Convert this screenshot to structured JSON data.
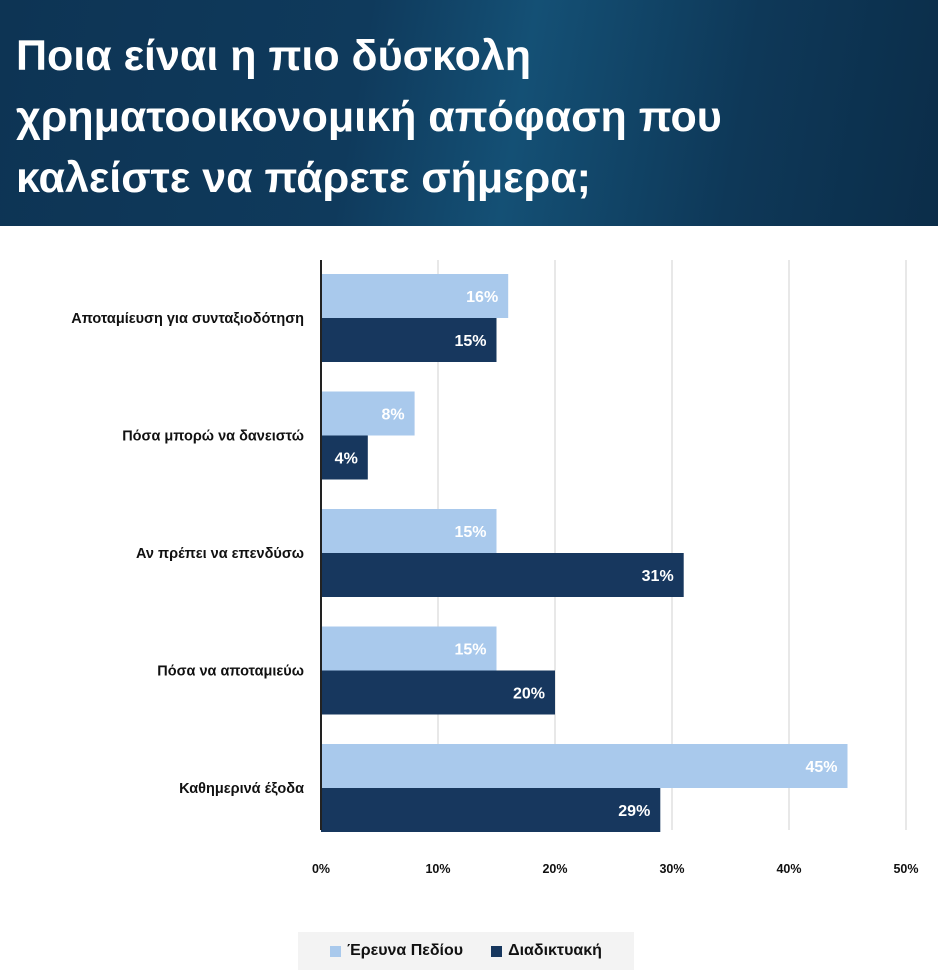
{
  "header": {
    "title": "Ποια είναι η πιο δύσκολη χρηματοοικονομική απόφαση που καλείστε να πάρετε σήμερα;"
  },
  "chart_data": {
    "type": "bar",
    "orientation": "horizontal",
    "title": "Ποια είναι η πιο δύσκολη χρηματοοικονομική απόφαση που καλείστε να πάρετε σήμερα;",
    "categories": [
      "Αποταμίευση για συνταξιοδότηση",
      "Πόσα μπορώ να δανειστώ",
      "Αν πρέπει να επενδύσω",
      "Πόσα να αποταμιεύω",
      "Καθημερινά έξοδα"
    ],
    "series": [
      {
        "name": "Έρευνα Πεδίου",
        "color": "#a9c9ec",
        "values": [
          16,
          8,
          15,
          15,
          45
        ],
        "labels": [
          "16%",
          "8%",
          "15%",
          "15%",
          "45%"
        ]
      },
      {
        "name": "Διαδικτυακή",
        "color": "#17375e",
        "values": [
          15,
          4,
          31,
          20,
          29
        ],
        "labels": [
          "15%",
          "4%",
          "31%",
          "20%",
          "29%"
        ]
      }
    ],
    "xlim": [
      0,
      50
    ],
    "xticks": [
      "0%",
      "10%",
      "20%",
      "30%",
      "40%",
      "50%"
    ],
    "grid": true,
    "legend_position": "bottom"
  }
}
